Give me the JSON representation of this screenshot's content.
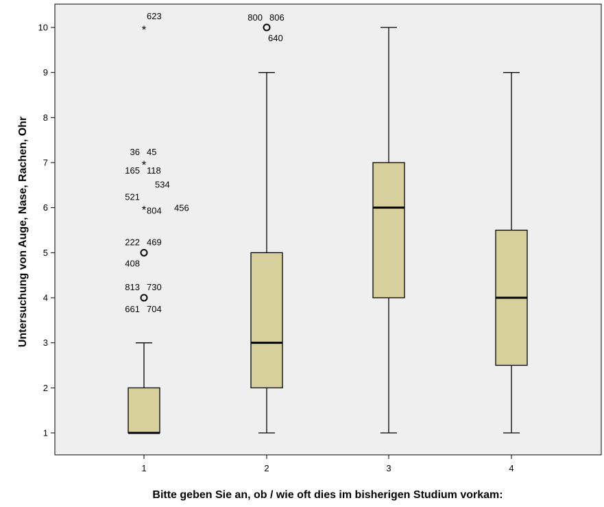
{
  "chart_data": {
    "type": "boxplot",
    "title": "",
    "xlabel": "Bitte geben Sie an, ob / wie oft dies im bisherigen Studium vorkam:",
    "ylabel": "Untersuchung von Auge, Nase, Rachen, Ohr",
    "categories": [
      "1",
      "2",
      "3",
      "4"
    ],
    "ylim": [
      0.5,
      10.5
    ],
    "yticks": [
      "1",
      "2",
      "3",
      "4",
      "5",
      "6",
      "7",
      "8",
      "9",
      "10"
    ],
    "grid": false,
    "colors": {
      "plot_bg": "#efefef",
      "box_fill": "#d7cf9c",
      "stroke": "#000000"
    },
    "boxes": [
      {
        "category": "1",
        "whisker_low": 1,
        "q1": 1,
        "median": 1,
        "q3": 2,
        "whisker_high": 3
      },
      {
        "category": "2",
        "whisker_low": 1,
        "q1": 2,
        "median": 3,
        "q3": 5,
        "whisker_high": 9
      },
      {
        "category": "3",
        "whisker_low": 1,
        "q1": 4,
        "median": 6,
        "q3": 7,
        "whisker_high": 10
      },
      {
        "category": "4",
        "whisker_low": 1,
        "q1": 2.5,
        "median": 4,
        "q3": 5.5,
        "whisker_high": 9
      }
    ],
    "outliers": [
      {
        "category": "1",
        "value": 10,
        "marker": "star",
        "labels": [
          "623"
        ]
      },
      {
        "category": "1",
        "value": 7,
        "marker": "star",
        "labels": [
          "36",
          "45",
          "165",
          "118"
        ]
      },
      {
        "category": "1",
        "value": 6,
        "marker": "star",
        "labels": [
          "534",
          "521",
          "804",
          "456"
        ]
      },
      {
        "category": "1",
        "value": 5,
        "marker": "circle",
        "labels": [
          "222",
          "469",
          "408"
        ]
      },
      {
        "category": "1",
        "value": 4,
        "marker": "circle",
        "labels": [
          "813",
          "730",
          "661",
          "704"
        ]
      },
      {
        "category": "2",
        "value": 10,
        "marker": "circle",
        "labels": [
          "800",
          "806",
          "640"
        ]
      }
    ]
  }
}
